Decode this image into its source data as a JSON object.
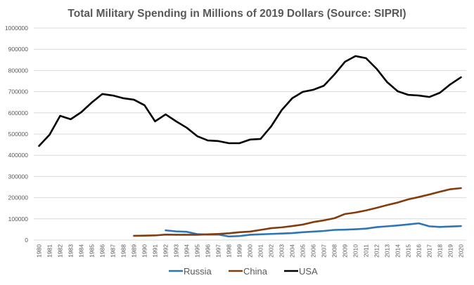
{
  "chart_data": {
    "type": "line",
    "title": "Total Military Spending in Millions of 2019 Dollars (Source: SIPRI)",
    "xlabel": "",
    "ylabel": "",
    "ylim": [
      0,
      1000000
    ],
    "yticks": [
      "0",
      "100000",
      "200000",
      "300000",
      "400000",
      "500000",
      "600000",
      "700000",
      "800000",
      "900000",
      "1000000"
    ],
    "ytick_values": [
      0,
      100000,
      200000,
      300000,
      400000,
      500000,
      600000,
      700000,
      800000,
      900000,
      1000000
    ],
    "grid": true,
    "legend_position": "bottom",
    "x": [
      1980,
      1981,
      1982,
      1983,
      1984,
      1985,
      1986,
      1987,
      1988,
      1989,
      1990,
      1991,
      1992,
      1993,
      1994,
      1995,
      1996,
      1997,
      1998,
      1999,
      2000,
      2001,
      2002,
      2003,
      2004,
      2005,
      2006,
      2007,
      2008,
      2009,
      2010,
      2011,
      2012,
      2013,
      2014,
      2015,
      2016,
      2017,
      2018,
      2019,
      2020
    ],
    "series": [
      {
        "name": "Russia",
        "color": "#2e75b6",
        "values": [
          null,
          null,
          null,
          null,
          null,
          null,
          null,
          null,
          null,
          null,
          null,
          null,
          46000,
          41000,
          39000,
          28000,
          26000,
          26000,
          17000,
          19000,
          25000,
          27000,
          29000,
          31000,
          33000,
          37000,
          40000,
          43000,
          48000,
          49000,
          51000,
          54000,
          61000,
          65000,
          69000,
          74000,
          79000,
          65000,
          62000,
          64000,
          66000
        ]
      },
      {
        "name": "China",
        "color": "#843c0c",
        "values": [
          null,
          null,
          null,
          null,
          null,
          null,
          null,
          null,
          null,
          20000,
          21000,
          22000,
          26000,
          25000,
          25000,
          25000,
          27000,
          29000,
          32000,
          37000,
          40000,
          48000,
          56000,
          60000,
          66000,
          73000,
          85000,
          93000,
          103000,
          123000,
          130000,
          140000,
          152000,
          165000,
          177000,
          192000,
          203000,
          215000,
          228000,
          240000,
          245000
        ]
      },
      {
        "name": "USA",
        "color": "#000000",
        "values": [
          444000,
          497000,
          586000,
          570000,
          603000,
          649000,
          689000,
          682000,
          669000,
          662000,
          636000,
          560000,
          593000,
          560000,
          530000,
          490000,
          470000,
          467000,
          457000,
          457000,
          474000,
          477000,
          536000,
          613000,
          669000,
          699000,
          709000,
          728000,
          781000,
          841000,
          868000,
          858000,
          808000,
          745000,
          702000,
          685000,
          682000,
          675000,
          695000,
          735000,
          768000
        ]
      }
    ]
  }
}
